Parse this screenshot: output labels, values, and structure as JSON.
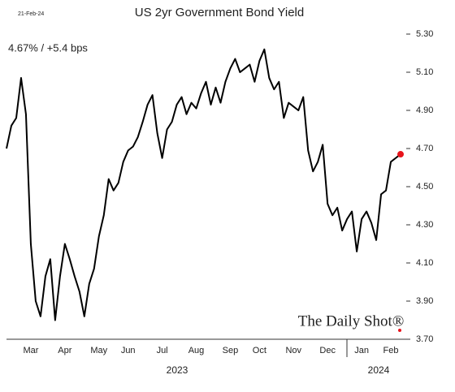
{
  "chart_data": {
    "type": "line",
    "title": "US 2yr Government Bond Yield",
    "date": "21-Feb-24",
    "headline": "4.67%  /  +5.4 bps",
    "source": "The Daily Shot®",
    "categories": [
      null,
      null,
      null,
      null,
      null,
      "Mar",
      null,
      null,
      null,
      null,
      null,
      null,
      "Apr",
      null,
      null,
      null,
      null,
      null,
      null,
      "May",
      null,
      null,
      null,
      null,
      null,
      "Jun",
      null,
      null,
      null,
      null,
      null,
      null,
      "Jul",
      null,
      null,
      null,
      null,
      null,
      null,
      "Aug",
      null,
      null,
      null,
      null,
      null,
      null,
      "Sep",
      null,
      null,
      null,
      null,
      null,
      "Oct",
      null,
      null,
      null,
      null,
      null,
      null,
      "Nov",
      null,
      null,
      null,
      null,
      null,
      null,
      "Dec",
      null,
      null,
      null,
      null,
      null,
      null,
      "Jan",
      null,
      null,
      null,
      null,
      null,
      "Feb",
      null,
      null
    ],
    "x_groups": [
      "2023",
      "2024"
    ],
    "values": [
      4.7,
      4.82,
      4.86,
      5.07,
      4.88,
      4.2,
      3.9,
      3.82,
      4.03,
      4.12,
      3.8,
      4.03,
      4.2,
      4.12,
      4.03,
      3.95,
      3.82,
      3.99,
      4.07,
      4.24,
      4.35,
      4.54,
      4.48,
      4.52,
      4.63,
      4.69,
      4.71,
      4.76,
      4.84,
      4.93,
      4.98,
      4.78,
      4.65,
      4.8,
      4.84,
      4.93,
      4.97,
      4.88,
      4.94,
      4.91,
      4.99,
      5.05,
      4.93,
      5.02,
      4.94,
      5.05,
      5.12,
      5.17,
      5.1,
      5.12,
      5.14,
      5.05,
      5.16,
      5.22,
      5.07,
      5.01,
      5.05,
      4.86,
      4.94,
      4.92,
      4.9,
      4.97,
      4.69,
      4.58,
      4.63,
      4.72,
      4.41,
      4.35,
      4.39,
      4.27,
      4.33,
      4.37,
      4.16,
      4.33,
      4.37,
      4.31,
      4.22,
      4.46,
      4.48,
      4.63,
      4.65,
      4.67
    ],
    "color": "#000000",
    "last_marker_color": "#e8141b",
    "ylim": [
      3.7,
      5.3
    ],
    "yticks": [
      {
        "value": 3.7,
        "label": "3.70"
      },
      {
        "value": 3.9,
        "label": "3.90"
      },
      {
        "value": 4.1,
        "label": "4.10"
      },
      {
        "value": 4.3,
        "label": "4.30"
      },
      {
        "value": 4.5,
        "label": "4.50"
      },
      {
        "value": 4.7,
        "label": "4.70"
      },
      {
        "value": 4.9,
        "label": "4.90"
      },
      {
        "value": 5.1,
        "label": "5.10"
      },
      {
        "value": 5.3,
        "label": "5.30"
      }
    ],
    "grid": false
  }
}
